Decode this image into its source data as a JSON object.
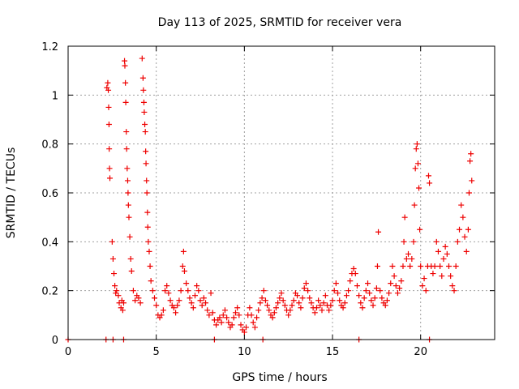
{
  "chart_data": {
    "type": "scatter",
    "title": "Day 113 of 2025, SRMTID for receiver vera",
    "xlabel": "GPS time / hours",
    "ylabel": "SRMTID / TECUs",
    "xlim": [
      0,
      24.2
    ],
    "ylim": [
      0,
      1.2
    ],
    "x_ticks": [
      0,
      5,
      10,
      15,
      20
    ],
    "x_tick_labels": [
      "0",
      "5",
      "10",
      "15",
      "20"
    ],
    "y_ticks": [
      0,
      0.2,
      0.4,
      0.6,
      0.8,
      1.0,
      1.2
    ],
    "y_tick_labels": [
      "0",
      "0.2",
      "0.4",
      "0.6",
      "0.8",
      "1",
      "1.2"
    ],
    "grid": true,
    "marker": "plus",
    "colors": {
      "series": "#ee0000",
      "grid": "#a0a0a0",
      "axis": "#000000"
    },
    "series": [
      {
        "name": "SRMTID",
        "points": [
          [
            0.0,
            0.0
          ],
          [
            2.15,
            0.0
          ],
          [
            2.55,
            0.0
          ],
          [
            3.15,
            0.0
          ],
          [
            8.3,
            0.0
          ],
          [
            11.05,
            0.0
          ],
          [
            16.5,
            0.0
          ],
          [
            20.5,
            0.0
          ],
          [
            2.2,
            1.03
          ],
          [
            2.25,
            1.05
          ],
          [
            2.28,
            1.02
          ],
          [
            2.3,
            0.95
          ],
          [
            2.32,
            0.88
          ],
          [
            2.33,
            0.78
          ],
          [
            2.35,
            0.7
          ],
          [
            2.37,
            0.66
          ],
          [
            2.5,
            0.4
          ],
          [
            2.55,
            0.33
          ],
          [
            2.6,
            0.27
          ],
          [
            2.65,
            0.22
          ],
          [
            2.7,
            0.19
          ],
          [
            2.75,
            0.2
          ],
          [
            2.85,
            0.18
          ],
          [
            2.9,
            0.15
          ],
          [
            3.0,
            0.13
          ],
          [
            3.05,
            0.16
          ],
          [
            3.1,
            0.12
          ],
          [
            3.15,
            0.15
          ],
          [
            3.2,
            1.14
          ],
          [
            3.22,
            1.12
          ],
          [
            3.25,
            1.05
          ],
          [
            3.27,
            0.97
          ],
          [
            3.3,
            0.85
          ],
          [
            3.32,
            0.78
          ],
          [
            3.35,
            0.7
          ],
          [
            3.38,
            0.65
          ],
          [
            3.4,
            0.6
          ],
          [
            3.42,
            0.55
          ],
          [
            3.45,
            0.5
          ],
          [
            3.5,
            0.42
          ],
          [
            3.55,
            0.33
          ],
          [
            3.6,
            0.28
          ],
          [
            3.7,
            0.2
          ],
          [
            3.8,
            0.16
          ],
          [
            3.9,
            0.18
          ],
          [
            4.0,
            0.17
          ],
          [
            4.1,
            0.15
          ],
          [
            4.2,
            1.15
          ],
          [
            4.25,
            1.07
          ],
          [
            4.27,
            1.02
          ],
          [
            4.3,
            0.97
          ],
          [
            4.32,
            0.93
          ],
          [
            4.35,
            0.88
          ],
          [
            4.38,
            0.85
          ],
          [
            4.4,
            0.77
          ],
          [
            4.42,
            0.72
          ],
          [
            4.45,
            0.65
          ],
          [
            4.47,
            0.6
          ],
          [
            4.5,
            0.52
          ],
          [
            4.52,
            0.46
          ],
          [
            4.55,
            0.4
          ],
          [
            4.6,
            0.36
          ],
          [
            4.65,
            0.3
          ],
          [
            4.7,
            0.24
          ],
          [
            4.8,
            0.2
          ],
          [
            4.9,
            0.17
          ],
          [
            5.0,
            0.14
          ],
          [
            5.1,
            0.1
          ],
          [
            5.2,
            0.09
          ],
          [
            5.3,
            0.1
          ],
          [
            5.4,
            0.12
          ],
          [
            5.5,
            0.2
          ],
          [
            5.6,
            0.22
          ],
          [
            5.7,
            0.19
          ],
          [
            5.8,
            0.16
          ],
          [
            5.9,
            0.14
          ],
          [
            6.0,
            0.13
          ],
          [
            6.1,
            0.11
          ],
          [
            6.2,
            0.14
          ],
          [
            6.3,
            0.16
          ],
          [
            6.4,
            0.2
          ],
          [
            6.5,
            0.3
          ],
          [
            6.55,
            0.36
          ],
          [
            6.6,
            0.28
          ],
          [
            6.7,
            0.23
          ],
          [
            6.8,
            0.2
          ],
          [
            6.9,
            0.17
          ],
          [
            7.0,
            0.15
          ],
          [
            7.1,
            0.13
          ],
          [
            7.2,
            0.18
          ],
          [
            7.3,
            0.22
          ],
          [
            7.4,
            0.2
          ],
          [
            7.5,
            0.16
          ],
          [
            7.6,
            0.14
          ],
          [
            7.7,
            0.17
          ],
          [
            7.8,
            0.15
          ],
          [
            7.9,
            0.12
          ],
          [
            8.0,
            0.1
          ],
          [
            8.1,
            0.19
          ],
          [
            8.2,
            0.11
          ],
          [
            8.3,
            0.08
          ],
          [
            8.4,
            0.06
          ],
          [
            8.5,
            0.08
          ],
          [
            8.6,
            0.09
          ],
          [
            8.7,
            0.07
          ],
          [
            8.8,
            0.1
          ],
          [
            8.9,
            0.12
          ],
          [
            9.0,
            0.09
          ],
          [
            9.1,
            0.07
          ],
          [
            9.2,
            0.05
          ],
          [
            9.3,
            0.06
          ],
          [
            9.4,
            0.09
          ],
          [
            9.5,
            0.11
          ],
          [
            9.6,
            0.13
          ],
          [
            9.7,
            0.1
          ],
          [
            9.8,
            0.06
          ],
          [
            9.9,
            0.04
          ],
          [
            10.0,
            0.03
          ],
          [
            10.1,
            0.05
          ],
          [
            10.2,
            0.1
          ],
          [
            10.3,
            0.13
          ],
          [
            10.4,
            0.1
          ],
          [
            10.5,
            0.07
          ],
          [
            10.6,
            0.05
          ],
          [
            10.7,
            0.09
          ],
          [
            10.8,
            0.12
          ],
          [
            10.9,
            0.15
          ],
          [
            11.0,
            0.17
          ],
          [
            11.1,
            0.2
          ],
          [
            11.2,
            0.16
          ],
          [
            11.3,
            0.14
          ],
          [
            11.4,
            0.12
          ],
          [
            11.5,
            0.1
          ],
          [
            11.6,
            0.09
          ],
          [
            11.7,
            0.11
          ],
          [
            11.8,
            0.13
          ],
          [
            11.9,
            0.15
          ],
          [
            12.0,
            0.17
          ],
          [
            12.1,
            0.19
          ],
          [
            12.2,
            0.16
          ],
          [
            12.3,
            0.14
          ],
          [
            12.4,
            0.12
          ],
          [
            12.5,
            0.1
          ],
          [
            12.6,
            0.12
          ],
          [
            12.7,
            0.14
          ],
          [
            12.8,
            0.16
          ],
          [
            12.9,
            0.19
          ],
          [
            13.0,
            0.18
          ],
          [
            13.1,
            0.15
          ],
          [
            13.2,
            0.13
          ],
          [
            13.3,
            0.17
          ],
          [
            13.4,
            0.21
          ],
          [
            13.5,
            0.23
          ],
          [
            13.6,
            0.2
          ],
          [
            13.7,
            0.17
          ],
          [
            13.8,
            0.15
          ],
          [
            13.9,
            0.13
          ],
          [
            14.0,
            0.11
          ],
          [
            14.1,
            0.13
          ],
          [
            14.2,
            0.16
          ],
          [
            14.3,
            0.14
          ],
          [
            14.4,
            0.12
          ],
          [
            14.5,
            0.15
          ],
          [
            14.6,
            0.18
          ],
          [
            14.7,
            0.14
          ],
          [
            14.8,
            0.12
          ],
          [
            14.9,
            0.14
          ],
          [
            15.0,
            0.16
          ],
          [
            15.1,
            0.2
          ],
          [
            15.2,
            0.23
          ],
          [
            15.3,
            0.19
          ],
          [
            15.4,
            0.16
          ],
          [
            15.5,
            0.14
          ],
          [
            15.6,
            0.13
          ],
          [
            15.7,
            0.15
          ],
          [
            15.8,
            0.18
          ],
          [
            15.9,
            0.2
          ],
          [
            16.0,
            0.24
          ],
          [
            16.1,
            0.27
          ],
          [
            16.2,
            0.29
          ],
          [
            16.3,
            0.27
          ],
          [
            16.4,
            0.22
          ],
          [
            16.5,
            0.18
          ],
          [
            16.6,
            0.15
          ],
          [
            16.7,
            0.13
          ],
          [
            16.8,
            0.17
          ],
          [
            16.9,
            0.2
          ],
          [
            17.0,
            0.23
          ],
          [
            17.1,
            0.19
          ],
          [
            17.2,
            0.16
          ],
          [
            17.3,
            0.14
          ],
          [
            17.4,
            0.17
          ],
          [
            17.5,
            0.21
          ],
          [
            17.55,
            0.3
          ],
          [
            17.6,
            0.44
          ],
          [
            17.7,
            0.2
          ],
          [
            17.8,
            0.17
          ],
          [
            17.9,
            0.15
          ],
          [
            18.0,
            0.14
          ],
          [
            18.1,
            0.16
          ],
          [
            18.2,
            0.19
          ],
          [
            18.3,
            0.23
          ],
          [
            18.4,
            0.3
          ],
          [
            18.5,
            0.26
          ],
          [
            18.6,
            0.22
          ],
          [
            18.7,
            0.19
          ],
          [
            18.8,
            0.21
          ],
          [
            18.9,
            0.24
          ],
          [
            19.0,
            0.3
          ],
          [
            19.05,
            0.4
          ],
          [
            19.1,
            0.5
          ],
          [
            19.2,
            0.33
          ],
          [
            19.3,
            0.35
          ],
          [
            19.4,
            0.3
          ],
          [
            19.5,
            0.33
          ],
          [
            19.6,
            0.4
          ],
          [
            19.65,
            0.55
          ],
          [
            19.7,
            0.7
          ],
          [
            19.75,
            0.78
          ],
          [
            19.8,
            0.8
          ],
          [
            19.85,
            0.72
          ],
          [
            19.9,
            0.62
          ],
          [
            19.95,
            0.45
          ],
          [
            20.0,
            0.3
          ],
          [
            20.1,
            0.22
          ],
          [
            20.2,
            0.25
          ],
          [
            20.3,
            0.2
          ],
          [
            20.4,
            0.3
          ],
          [
            20.45,
            0.67
          ],
          [
            20.5,
            0.64
          ],
          [
            20.6,
            0.3
          ],
          [
            20.7,
            0.27
          ],
          [
            20.8,
            0.3
          ],
          [
            20.9,
            0.4
          ],
          [
            21.0,
            0.36
          ],
          [
            21.1,
            0.3
          ],
          [
            21.2,
            0.26
          ],
          [
            21.3,
            0.33
          ],
          [
            21.4,
            0.38
          ],
          [
            21.5,
            0.35
          ],
          [
            21.6,
            0.3
          ],
          [
            21.7,
            0.26
          ],
          [
            21.8,
            0.22
          ],
          [
            21.9,
            0.2
          ],
          [
            22.0,
            0.3
          ],
          [
            22.1,
            0.4
          ],
          [
            22.2,
            0.45
          ],
          [
            22.3,
            0.55
          ],
          [
            22.4,
            0.5
          ],
          [
            22.5,
            0.42
          ],
          [
            22.6,
            0.36
          ],
          [
            22.7,
            0.45
          ],
          [
            22.75,
            0.6
          ],
          [
            22.8,
            0.73
          ],
          [
            22.85,
            0.76
          ],
          [
            22.9,
            0.65
          ]
        ]
      }
    ]
  }
}
